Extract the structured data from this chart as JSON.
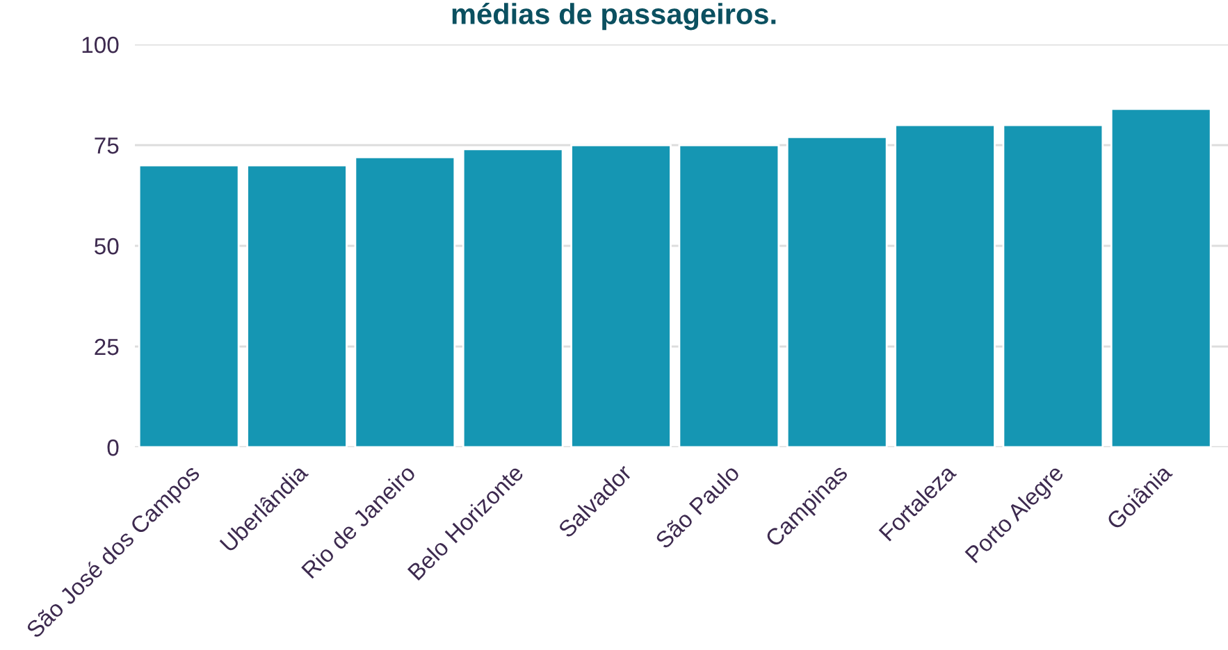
{
  "chart_data": {
    "type": "bar",
    "title": "médias de passageiros.",
    "categories": [
      "São José dos Campos",
      "Uberlândia",
      "Rio de Janeiro",
      "Belo Horizonte",
      "Salvador",
      "São Paulo",
      "Campinas",
      "Fortaleza",
      "Porto Alegre",
      "Goiânia"
    ],
    "values": [
      70,
      70,
      72,
      74,
      75,
      75,
      77,
      80,
      80,
      84
    ],
    "color": "#1596b3",
    "ylim": [
      0,
      100
    ],
    "yticks": [
      0,
      25,
      50,
      75,
      100
    ],
    "grid": "y"
  }
}
